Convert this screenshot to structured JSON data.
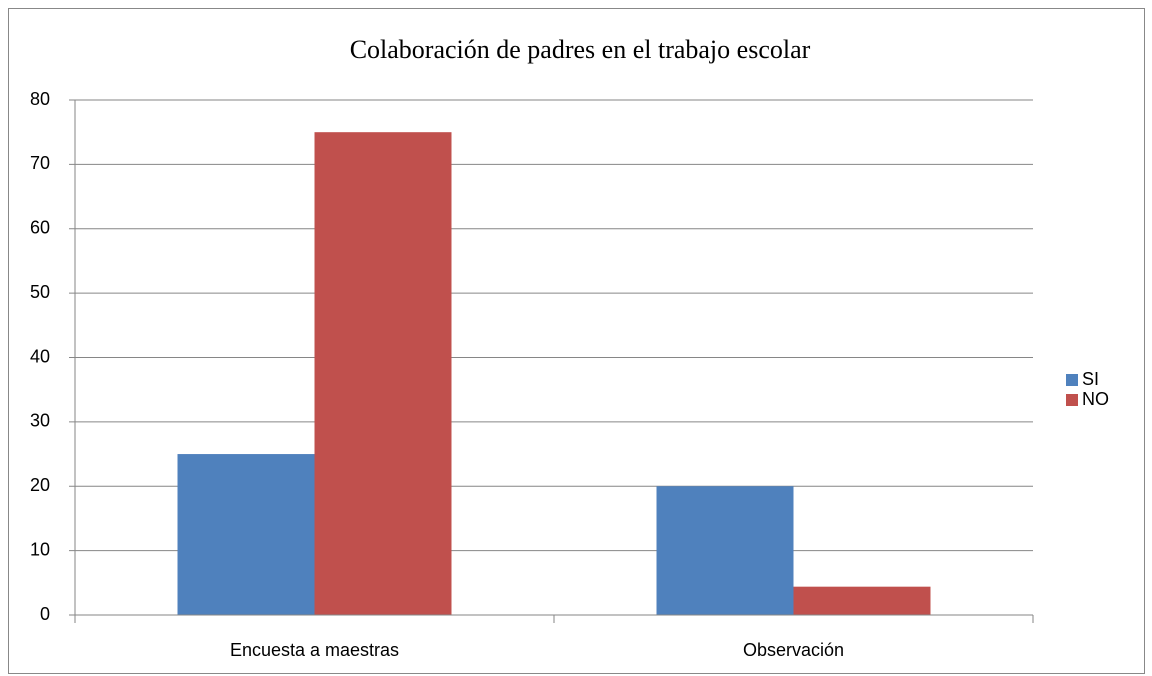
{
  "chart_data": {
    "type": "bar",
    "title": "Colaboración de padres en el trabajo escolar",
    "categories": [
      "Encuesta a maestras",
      "Observación"
    ],
    "series": [
      {
        "name": "SI",
        "color": "#4f81bd",
        "values": [
          25,
          20
        ]
      },
      {
        "name": "NO",
        "color": "#c0504d",
        "values": [
          75,
          4.4
        ]
      }
    ],
    "ylim": [
      0,
      80
    ],
    "yticks": [
      0,
      10,
      20,
      30,
      40,
      50,
      60,
      70,
      80
    ],
    "grid": true,
    "legend": "right"
  }
}
